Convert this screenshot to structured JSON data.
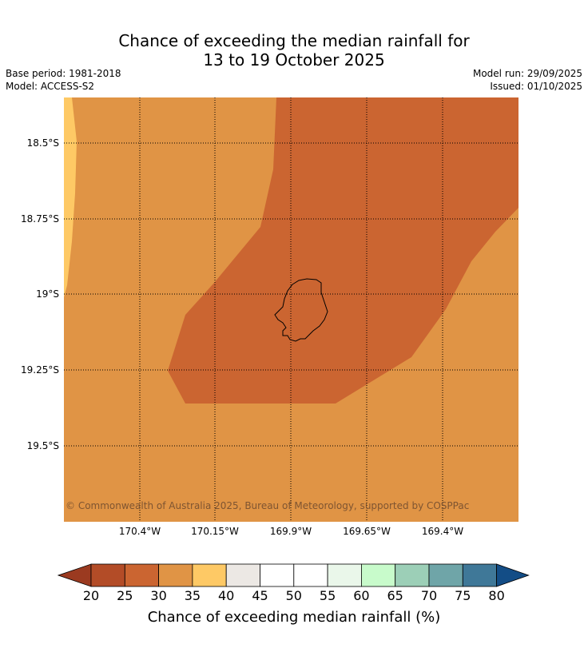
{
  "title": {
    "line1": "Chance of exceeding the median rainfall for",
    "line2": "13 to 19 October 2025"
  },
  "meta": {
    "base_period": "Base period: 1981-2018",
    "model": "Model: ACCESS-S2",
    "model_run": "Model run: 29/09/2025",
    "issued": "Issued: 01/10/2025"
  },
  "map": {
    "lat_labels": [
      "18.5°S",
      "18.75°S",
      "19°S",
      "19.25°S",
      "19.5°S"
    ],
    "lon_labels": [
      "170.4°W",
      "170.15°W",
      "169.9°W",
      "169.65°W",
      "169.4°W"
    ],
    "copyright": "© Commonwealth of Australia 2025, Bureau of Meteorology, supported by COSPPac",
    "zone_colors": {
      "band_35_40": "#fec965",
      "band_30_35": "#e09445",
      "band_25_30": "#cb6531"
    },
    "island_name_icon": "island-outline-icon"
  },
  "colorbar": {
    "label": "Chance of exceeding median rainfall (%)",
    "ticks": [
      "20",
      "25",
      "30",
      "35",
      "40",
      "45",
      "50",
      "55",
      "60",
      "65",
      "70",
      "75",
      "80"
    ],
    "under_color": "#9b3a20",
    "over_color": "#134d86",
    "colors": [
      "#b34c27",
      "#cb6531",
      "#e09445",
      "#fec965",
      "#ece8e4",
      "#ffffff",
      "#ffffff",
      "#eaf7ea",
      "#c8fbcb",
      "#9ccfb7",
      "#6fa5a8",
      "#3f7898"
    ]
  }
}
